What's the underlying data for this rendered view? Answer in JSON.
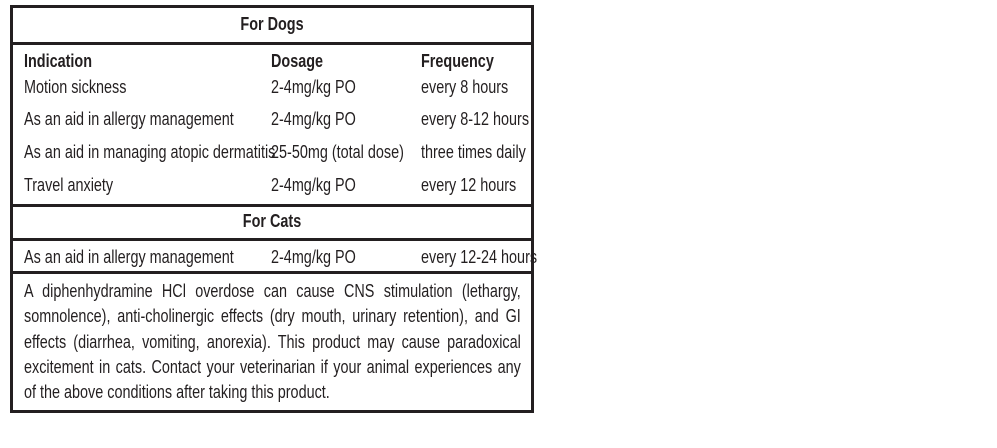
{
  "dogs": {
    "title": "For Dogs",
    "headers": {
      "indication": "Indication",
      "dosage": "Dosage",
      "frequency": "Frequency"
    },
    "rows": [
      {
        "indication": "Motion sickness",
        "dosage": "2-4mg/kg PO",
        "frequency": "every 8 hours"
      },
      {
        "indication": "As an aid in allergy management",
        "dosage": "2-4mg/kg PO",
        "frequency": "every 8-12 hours"
      },
      {
        "indication": "As an aid in managing atopic dermatitis",
        "dosage": "25-50mg (total dose)",
        "frequency": "three times daily"
      },
      {
        "indication": "Travel anxiety",
        "dosage": "2-4mg/kg PO",
        "frequency": "every 12 hours"
      }
    ]
  },
  "cats": {
    "title": "For Cats",
    "rows": [
      {
        "indication": "As an aid in allergy management",
        "dosage": "2-4mg/kg PO",
        "frequency": "every 12-24 hours"
      }
    ]
  },
  "warning": "A diphenhydramine HCl overdose can cause CNS stimulation (lethargy, somnolence), anti-cholinergic effects (dry mouth, urinary retention), and GI effects (diarrhea, vomiting, anorexia). This product may cause paradoxical excitement in cats. Contact your veterinarian if your animal experiences any of the above conditions after taking this product."
}
